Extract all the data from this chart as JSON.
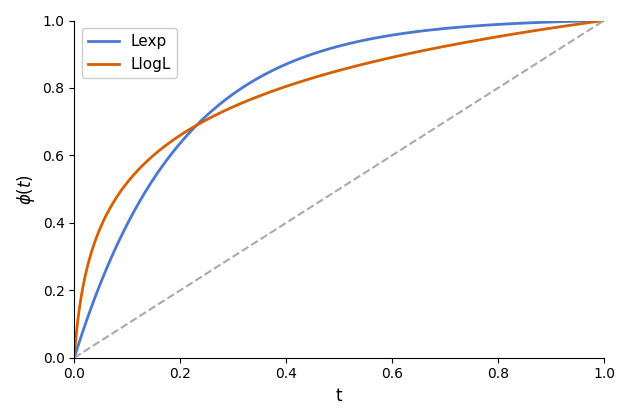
{
  "title": "",
  "xlabel": "t",
  "ylabel": "$\\phi(t)$",
  "xlim": [
    0,
    1
  ],
  "ylim": [
    0,
    1
  ],
  "xticks": [
    0.0,
    0.2,
    0.4,
    0.6,
    0.8,
    1.0
  ],
  "yticks": [
    0.0,
    0.2,
    0.4,
    0.6,
    0.8,
    1.0
  ],
  "lexp_color": "#4878cf",
  "llogl_color": "#d65f00",
  "diag_color": "#aaaaaa",
  "legend_labels": [
    "Lexp",
    "LlogL"
  ],
  "figsize": [
    6.3,
    4.2
  ],
  "dpi": 100,
  "lexp_lambda": 5.0,
  "llogl_lambda": 100.0
}
